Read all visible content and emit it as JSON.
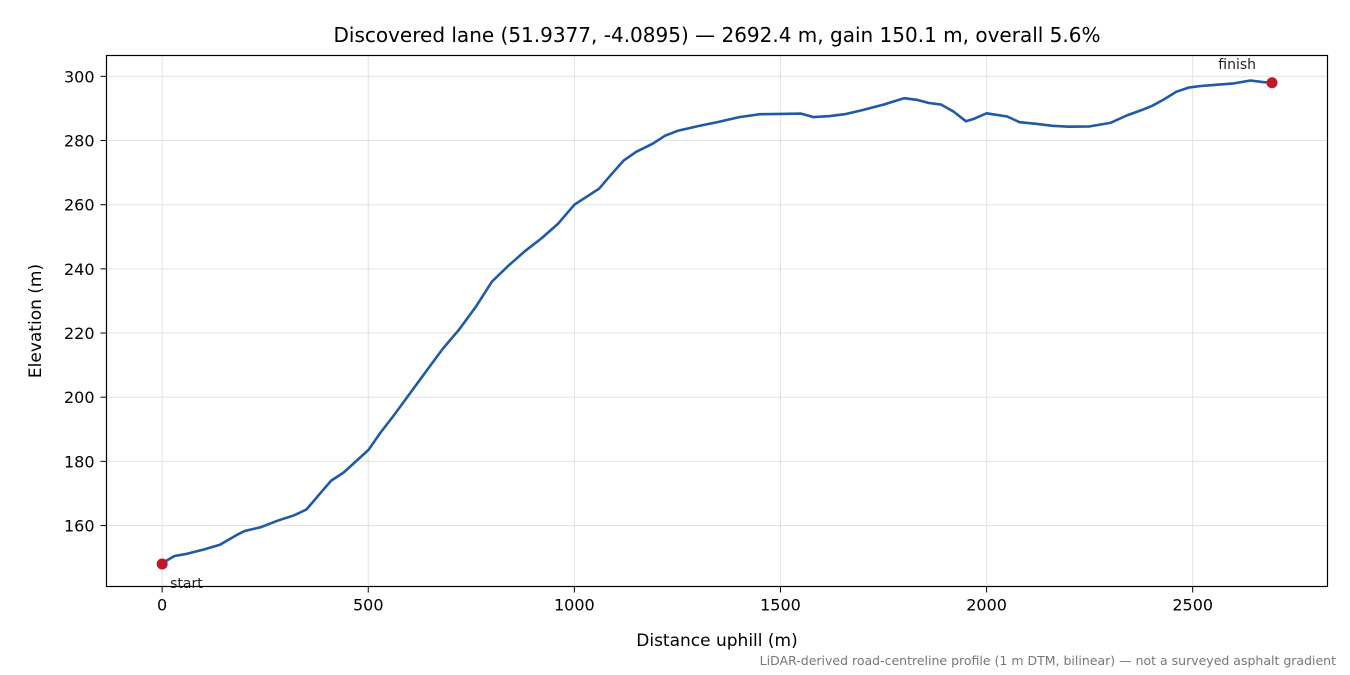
{
  "chart_data": {
    "type": "line",
    "title": "Discovered lane (51.9377, -4.0895) — 2692.4 m, gain 150.1 m, overall 5.6%",
    "xlabel": "Distance uphill (m)",
    "ylabel": "Elevation (m)",
    "xlim": [
      -135,
      2827
    ],
    "ylim": [
      141,
      306.5
    ],
    "xticks": [
      0,
      500,
      1000,
      1500,
      2000,
      2500
    ],
    "yticks": [
      160,
      180,
      200,
      220,
      240,
      260,
      280,
      300
    ],
    "grid": true,
    "line_color": "#1f5aa6",
    "marker_color": "#c0182b",
    "series": [
      {
        "x": [
          0,
          10,
          30,
          60,
          100,
          140,
          180,
          200,
          240,
          280,
          320,
          350,
          370,
          390,
          410,
          440,
          470,
          500,
          530,
          560,
          600,
          640,
          680,
          720,
          760,
          800,
          840,
          880,
          920,
          960,
          1000,
          1030,
          1060,
          1090,
          1120,
          1150,
          1190,
          1220,
          1250,
          1300,
          1350,
          1400,
          1450,
          1500,
          1550,
          1580,
          1620,
          1660,
          1700,
          1750,
          1800,
          1830,
          1860,
          1890,
          1920,
          1950,
          1970,
          2000,
          2050,
          2080,
          2120,
          2160,
          2200,
          2250,
          2300,
          2340,
          2370,
          2400,
          2430,
          2460,
          2490,
          2520,
          2560,
          2600,
          2640,
          2670,
          2692.4
        ],
        "y": [
          148,
          149,
          150.5,
          151.2,
          152.5,
          154,
          157,
          158.3,
          159.5,
          161.5,
          163.2,
          165,
          168,
          171,
          174,
          176.5,
          180,
          183.5,
          189,
          194,
          201,
          208,
          215,
          221,
          228,
          236,
          241,
          245.5,
          249.5,
          254,
          260,
          262.5,
          265,
          269.5,
          273.8,
          276.5,
          279,
          281.5,
          283,
          284.5,
          285.8,
          287.3,
          288.2,
          288.3,
          288.4,
          287.3,
          287.6,
          288.3,
          289.5,
          291.2,
          293.2,
          292.7,
          291.7,
          291.2,
          289,
          286,
          286.8,
          288.5,
          287.5,
          285.7,
          285.2,
          284.6,
          284.3,
          284.4,
          285.5,
          287.8,
          289.2,
          290.7,
          292.8,
          295.2,
          296.5,
          297.0,
          297.4,
          297.8,
          298.7,
          298.2,
          298.0
        ]
      }
    ],
    "annotations": [
      {
        "text": "start",
        "x": 0,
        "y": 148
      },
      {
        "text": "finish",
        "x": 2692.4,
        "y": 298.0
      }
    ],
    "caption": "LiDAR-derived road-centreline profile (1 m DTM, bilinear) — not a surveyed asphalt gradient"
  }
}
